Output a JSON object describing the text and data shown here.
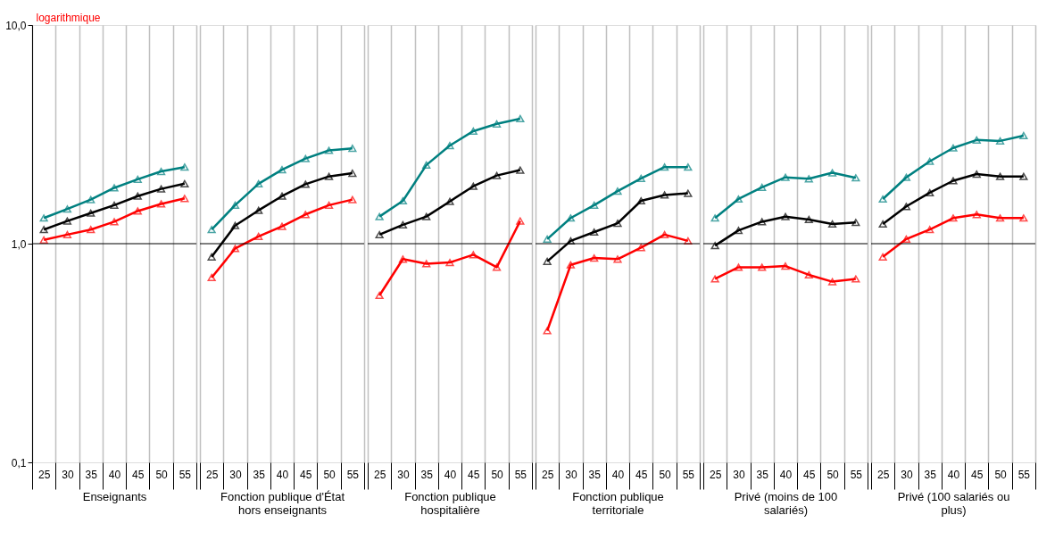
{
  "chart_data": [
    {
      "type": "line",
      "ylabel": "logarithmique",
      "xlabel": "Enseignants",
      "categories": [
        "25",
        "30",
        "35",
        "40",
        "45",
        "50",
        "55"
      ],
      "log": true,
      "ylim": [
        0.1,
        10
      ],
      "yticks": [
        {
          "value": 0.1,
          "label": "0,1"
        },
        {
          "value": 1,
          "label": "1,0"
        },
        {
          "value": 10,
          "label": "10,0"
        }
      ],
      "grid": "x",
      "marker": "triangle",
      "ref_lines": [
        {
          "axis": "y",
          "value": 1,
          "color": "#000000"
        }
      ],
      "series": [
        {
          "color": "#008080",
          "values": [
            1.31,
            1.44,
            1.59,
            1.8,
            1.97,
            2.14,
            2.24
          ]
        },
        {
          "color": "#000000",
          "values": [
            1.16,
            1.27,
            1.38,
            1.5,
            1.65,
            1.78,
            1.88
          ]
        },
        {
          "color": "#ff0000",
          "values": [
            1.04,
            1.1,
            1.16,
            1.26,
            1.41,
            1.52,
            1.61
          ]
        }
      ]
    },
    {
      "type": "line",
      "xlabel": "Fonction publique d'État hors enseignants",
      "categories": [
        "25",
        "30",
        "35",
        "40",
        "45",
        "50",
        "55"
      ],
      "log": true,
      "ylim": [
        0.1,
        10
      ],
      "tick_labels": "x",
      "grid": "x",
      "marker": "triangle",
      "ref_lines": [
        {
          "axis": "y",
          "value": 1,
          "color": "#000000"
        }
      ],
      "series": [
        {
          "color": "#008080",
          "values": [
            1.16,
            1.5,
            1.88,
            2.18,
            2.45,
            2.67,
            2.73
          ]
        },
        {
          "color": "#000000",
          "values": [
            0.87,
            1.21,
            1.42,
            1.65,
            1.87,
            2.03,
            2.1
          ]
        },
        {
          "color": "#ff0000",
          "values": [
            0.7,
            0.95,
            1.08,
            1.2,
            1.36,
            1.5,
            1.59
          ]
        }
      ]
    },
    {
      "type": "line",
      "xlabel": "Fonction publique hospitalière",
      "categories": [
        "25",
        "30",
        "35",
        "40",
        "45",
        "50",
        "55"
      ],
      "log": true,
      "ylim": [
        0.1,
        10
      ],
      "tick_labels": "x",
      "grid": "x",
      "marker": "triangle",
      "ref_lines": [
        {
          "axis": "y",
          "value": 1,
          "color": "#000000"
        }
      ],
      "series": [
        {
          "color": "#008080",
          "values": [
            1.33,
            1.57,
            2.29,
            2.81,
            3.27,
            3.53,
            3.73
          ]
        },
        {
          "color": "#000000",
          "values": [
            1.1,
            1.22,
            1.33,
            1.56,
            1.83,
            2.05,
            2.17
          ]
        },
        {
          "color": "#ff0000",
          "values": [
            0.58,
            0.85,
            0.81,
            0.82,
            0.89,
            0.78,
            1.27
          ]
        }
      ]
    },
    {
      "type": "line",
      "xlabel": "Fonction publique territoriale",
      "categories": [
        "25",
        "30",
        "35",
        "40",
        "45",
        "50",
        "55"
      ],
      "log": true,
      "ylim": [
        0.1,
        10
      ],
      "tick_labels": "x",
      "grid": "x",
      "marker": "triangle",
      "ref_lines": [
        {
          "axis": "y",
          "value": 1,
          "color": "#000000"
        }
      ],
      "series": [
        {
          "color": "#008080",
          "values": [
            1.05,
            1.31,
            1.5,
            1.74,
            1.99,
            2.24,
            2.24
          ]
        },
        {
          "color": "#000000",
          "values": [
            0.83,
            1.03,
            1.13,
            1.24,
            1.57,
            1.67,
            1.7
          ]
        },
        {
          "color": "#ff0000",
          "values": [
            0.4,
            0.8,
            0.86,
            0.85,
            0.96,
            1.1,
            1.03
          ]
        }
      ]
    },
    {
      "type": "line",
      "xlabel": "Privé (moins de 100 salariés)",
      "categories": [
        "25",
        "30",
        "35",
        "40",
        "45",
        "50",
        "55"
      ],
      "log": true,
      "ylim": [
        0.1,
        10
      ],
      "tick_labels": "x",
      "grid": "x",
      "marker": "triangle",
      "ref_lines": [
        {
          "axis": "y",
          "value": 1,
          "color": "#000000"
        }
      ],
      "series": [
        {
          "color": "#008080",
          "values": [
            1.31,
            1.6,
            1.81,
            2.01,
            1.98,
            2.11,
            2.0
          ]
        },
        {
          "color": "#000000",
          "values": [
            0.98,
            1.15,
            1.26,
            1.33,
            1.29,
            1.23,
            1.25
          ]
        },
        {
          "color": "#ff0000",
          "values": [
            0.69,
            0.78,
            0.78,
            0.79,
            0.72,
            0.67,
            0.69
          ]
        }
      ]
    },
    {
      "type": "line",
      "xlabel": "Privé (100 salariés ou plus)",
      "categories": [
        "25",
        "30",
        "35",
        "40",
        "45",
        "50",
        "55"
      ],
      "log": true,
      "ylim": [
        0.1,
        10
      ],
      "tick_labels": "x",
      "grid": "x",
      "marker": "triangle",
      "ref_lines": [
        {
          "axis": "y",
          "value": 1,
          "color": "#000000"
        }
      ],
      "series": [
        {
          "color": "#008080",
          "values": [
            1.6,
            2.01,
            2.38,
            2.74,
            2.98,
            2.95,
            3.12
          ]
        },
        {
          "color": "#000000",
          "values": [
            1.23,
            1.48,
            1.71,
            1.94,
            2.08,
            2.03,
            2.03
          ]
        },
        {
          "color": "#ff0000",
          "values": [
            0.87,
            1.05,
            1.16,
            1.31,
            1.36,
            1.31,
            1.31
          ]
        }
      ]
    }
  ]
}
